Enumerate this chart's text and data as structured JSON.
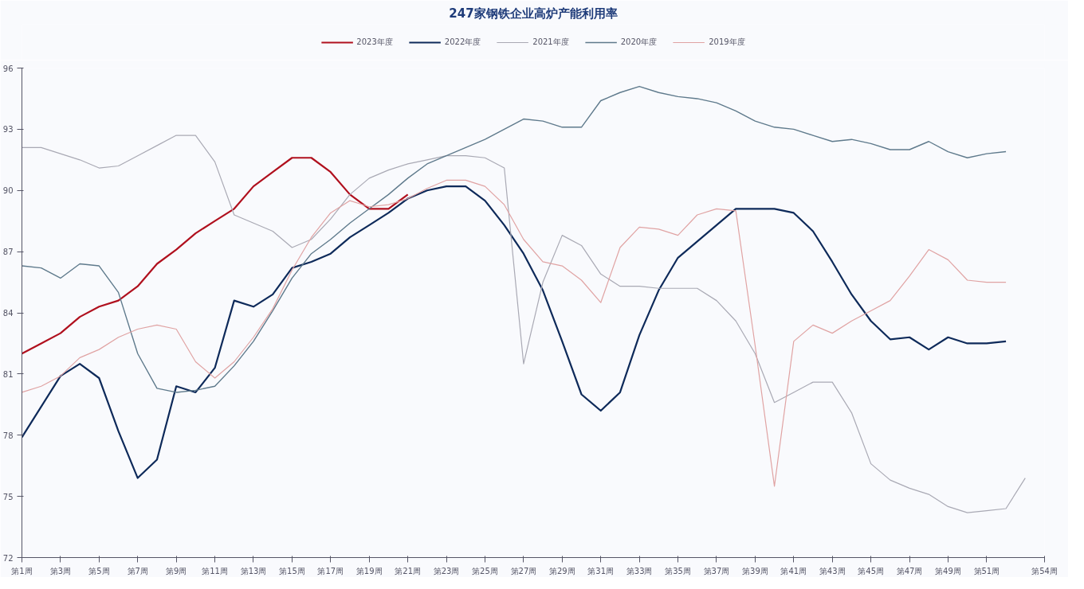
{
  "chart_data": {
    "type": "line",
    "title": "247家钢铁企业高炉产能利用率",
    "categories": [
      "第1周",
      null,
      "第3周",
      null,
      "第5周",
      null,
      "第7周",
      null,
      "第9周",
      null,
      "第11周",
      null,
      "第13周",
      null,
      "第15周",
      null,
      "第17周",
      null,
      "第19周",
      null,
      "第21周",
      null,
      "第23周",
      null,
      "第25周",
      null,
      "第27周",
      null,
      "第29周",
      null,
      "第31周",
      null,
      "第33周",
      null,
      "第35周",
      null,
      "第37周",
      null,
      "第39周",
      null,
      "第41周",
      null,
      "第43周",
      null,
      "第45周",
      null,
      "第47周",
      null,
      "第49周",
      null,
      "第51周",
      null,
      null,
      "第54周"
    ],
    "ylim": [
      72,
      96
    ],
    "yticks": [
      72,
      75,
      78,
      81,
      84,
      87,
      90,
      93,
      96
    ],
    "grid": false,
    "legend": "top",
    "marker": "none",
    "line_style": "solid",
    "series": [
      {
        "name": "2023年度",
        "color": "#b0101e",
        "values": [
          82.0,
          82.5,
          83.0,
          83.8,
          84.3,
          84.6,
          85.3,
          86.4,
          87.1,
          87.9,
          88.5,
          89.1,
          90.2,
          90.9,
          91.6,
          91.6,
          90.9,
          89.8,
          89.1,
          89.1,
          89.8,
          null,
          null,
          null,
          null,
          null,
          null,
          null,
          null,
          null,
          null,
          null,
          null,
          null,
          null,
          null,
          null,
          null,
          null,
          null,
          null,
          null,
          null,
          null,
          null,
          null,
          null,
          null,
          null,
          null,
          null,
          null,
          null,
          null
        ]
      },
      {
        "name": "2022年度",
        "color": "#0e2a5a",
        "values": [
          77.9,
          79.4,
          80.9,
          81.5,
          80.8,
          78.2,
          75.9,
          76.8,
          80.4,
          80.1,
          81.3,
          84.6,
          84.3,
          84.9,
          86.2,
          86.5,
          86.9,
          87.7,
          88.3,
          88.9,
          89.6,
          90.0,
          90.2,
          90.2,
          89.5,
          88.3,
          86.9,
          85.1,
          82.6,
          80.0,
          79.2,
          80.1,
          82.9,
          85.1,
          86.7,
          87.5,
          88.3,
          89.1,
          89.1,
          89.1,
          88.9,
          88.0,
          86.5,
          84.9,
          83.6,
          82.7,
          82.8,
          82.2,
          82.8,
          82.5,
          82.5,
          82.6,
          null,
          null
        ]
      },
      {
        "name": "2021年度",
        "color": "#a9a9b4",
        "values": [
          92.1,
          92.1,
          91.8,
          91.5,
          91.1,
          91.2,
          91.7,
          92.2,
          92.7,
          92.7,
          91.4,
          88.8,
          88.4,
          88.0,
          87.2,
          87.6,
          88.6,
          89.8,
          90.6,
          91.0,
          91.3,
          91.5,
          91.7,
          91.7,
          91.6,
          91.1,
          81.5,
          85.5,
          87.8,
          87.3,
          85.9,
          85.3,
          85.3,
          85.2,
          85.2,
          85.2,
          84.6,
          83.6,
          82.0,
          79.6,
          80.1,
          80.6,
          80.6,
          79.1,
          76.6,
          75.8,
          75.4,
          75.1,
          74.5,
          74.2,
          74.3,
          74.4,
          75.9,
          null
        ]
      },
      {
        "name": "2020年度",
        "color": "#5f7a8c",
        "values": [
          86.3,
          86.2,
          85.7,
          86.4,
          86.3,
          85.0,
          82.0,
          80.3,
          80.1,
          80.2,
          80.4,
          81.4,
          82.6,
          84.1,
          85.7,
          86.9,
          87.6,
          88.4,
          89.1,
          89.8,
          90.6,
          91.3,
          91.7,
          92.1,
          92.5,
          93.0,
          93.5,
          93.4,
          93.1,
          93.1,
          94.4,
          94.8,
          95.1,
          94.8,
          94.6,
          94.5,
          94.3,
          93.9,
          93.4,
          93.1,
          93.0,
          92.7,
          92.4,
          92.5,
          92.3,
          92.0,
          92.0,
          92.4,
          91.9,
          91.6,
          91.8,
          91.9,
          null,
          null
        ]
      },
      {
        "name": "2019年度",
        "color": "#e0a3a3",
        "values": [
          80.1,
          80.4,
          80.9,
          81.8,
          82.2,
          82.8,
          83.2,
          83.4,
          83.2,
          81.6,
          80.8,
          81.6,
          82.8,
          84.2,
          86.1,
          87.7,
          88.9,
          89.5,
          89.2,
          89.3,
          89.6,
          90.1,
          90.5,
          90.5,
          90.2,
          89.3,
          87.6,
          86.5,
          86.3,
          85.6,
          84.5,
          87.2,
          88.2,
          88.1,
          87.8,
          88.8,
          89.1,
          89.0,
          82.4,
          75.5,
          82.6,
          83.4,
          83.0,
          83.6,
          84.1,
          84.6,
          85.8,
          87.1,
          86.6,
          85.6,
          85.5,
          85.5,
          null,
          null
        ]
      }
    ]
  }
}
